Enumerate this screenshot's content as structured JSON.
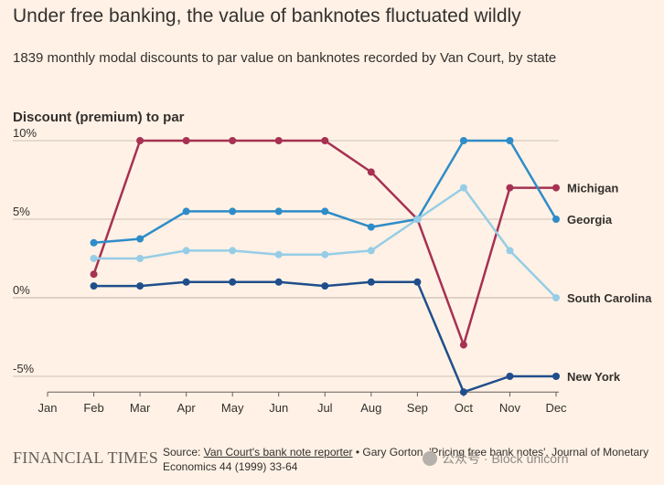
{
  "header": {
    "title": "Under free banking, the value of banknotes fluctuated wildly",
    "subtitle": "1839 monthly modal discounts to par value on banknotes recorded by Van Court, by state"
  },
  "chart_data": {
    "type": "line",
    "title": "Under free banking, the value of banknotes fluctuated wildly",
    "subtitle": "1839 monthly modal discounts to par value on banknotes recorded by Van Court, by state",
    "ylabel": "Discount (premium) to par",
    "xlabel": "",
    "categories": [
      "Jan",
      "Feb",
      "Mar",
      "Apr",
      "May",
      "Jun",
      "Jul",
      "Aug",
      "Sep",
      "Oct",
      "Nov",
      "Dec"
    ],
    "ylim": [
      -6,
      10
    ],
    "yticks": [
      10,
      5,
      0,
      -5
    ],
    "ytick_labels": [
      "10%",
      "5%",
      "0%",
      "-5%"
    ],
    "grid": true,
    "series": [
      {
        "name": "Michigan",
        "color": "#a63152",
        "values": [
          null,
          1.5,
          10,
          10,
          10,
          10,
          10,
          8,
          5,
          -3,
          7,
          7
        ]
      },
      {
        "name": "Georgia",
        "color": "#2e8cc8",
        "values": [
          null,
          3.5,
          3.75,
          5.5,
          5.5,
          5.5,
          5.5,
          4.5,
          5,
          10,
          10,
          5
        ]
      },
      {
        "name": "South Carolina",
        "color": "#96cde6",
        "values": [
          null,
          2.5,
          2.5,
          3,
          3,
          2.75,
          2.75,
          3,
          5,
          7,
          3,
          0
        ]
      },
      {
        "name": "New York",
        "color": "#1f4e8c",
        "values": [
          null,
          0.75,
          0.75,
          1,
          1,
          1,
          0.75,
          1,
          1,
          -6,
          -5,
          -5
        ]
      }
    ]
  },
  "footer": {
    "logo": "FINANCIAL TIMES",
    "source_prefix": "Source: ",
    "source_link": "Van Court's bank note reporter",
    "source_rest": " • Gary Gorton, 'Pricing free bank notes', Journal of Monetary Economics 44 (1999) 33-64",
    "watermark": "公众号 · Block unicorn"
  }
}
